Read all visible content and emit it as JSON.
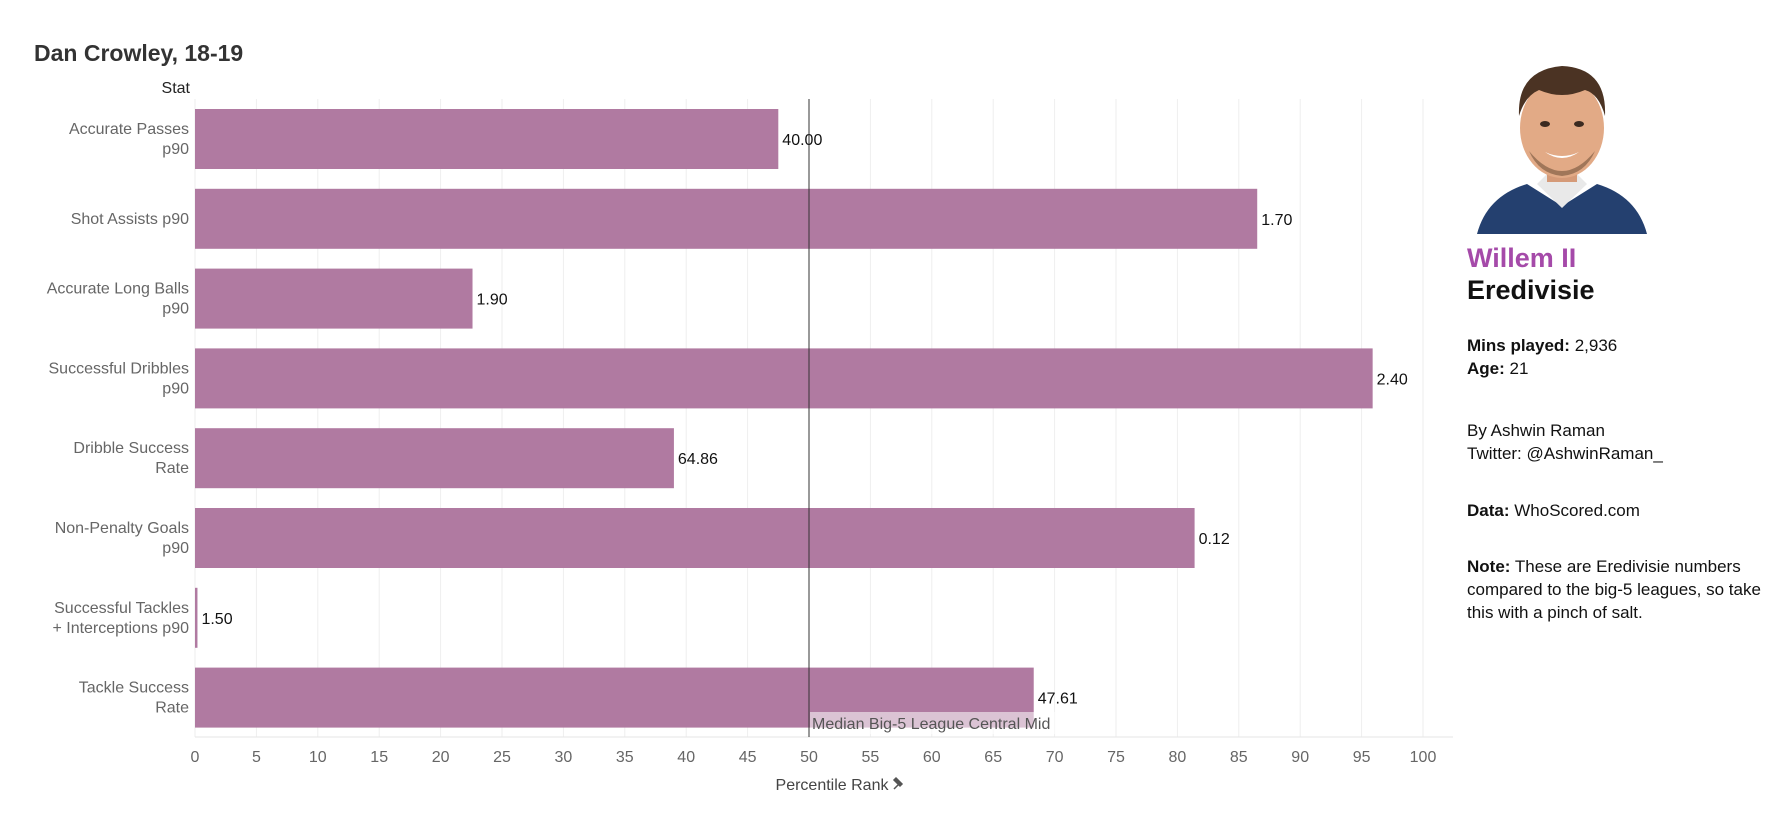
{
  "title": "Dan Crowley, 18-19",
  "chart_data": {
    "type": "bar",
    "orientation": "horizontal",
    "stat_header": "Stat",
    "categories": [
      [
        "Accurate Passes",
        "p90"
      ],
      [
        "Shot Assists p90"
      ],
      [
        "Accurate Long Balls",
        "p90"
      ],
      [
        "Successful Dribbles",
        "p90"
      ],
      [
        "Dribble Success",
        "Rate"
      ],
      [
        "Non-Penalty Goals",
        "p90"
      ],
      [
        "Successful Tackles",
        "+ Interceptions p90"
      ],
      [
        "Tackle Success",
        "Rate"
      ]
    ],
    "values": [
      47.5,
      86.5,
      22.6,
      95.9,
      39.0,
      81.4,
      0.2,
      68.3
    ],
    "value_labels": [
      "40.00",
      "1.70",
      "1.90",
      "2.40",
      "64.86",
      "0.12",
      "1.50",
      "47.61"
    ],
    "xlabel": "Percentile Rank",
    "xlim": [
      0,
      100
    ],
    "xticks": [
      0,
      5,
      10,
      15,
      20,
      25,
      30,
      35,
      40,
      45,
      50,
      55,
      60,
      65,
      70,
      75,
      80,
      85,
      90,
      95,
      100
    ],
    "reference_line": {
      "value": 50,
      "label": "Median Big-5 League Central Mid"
    },
    "bar_color": "#b07aa1",
    "grid": true
  },
  "sidebar": {
    "team": "Willem II",
    "league": "Eredivisie",
    "mins_label": "Mins played:",
    "mins_value": "2,936",
    "age_label": "Age:",
    "age_value": "21",
    "byline": "By Ashwin Raman",
    "twitter": "Twitter: @AshwinRaman_",
    "data_label": "Data:",
    "data_value": "WhoScored.com",
    "note_label": "Note:",
    "note_value": "These are Eredivisie numbers compared to the big-5 leagues, so take this with a pinch of salt."
  },
  "colors": {
    "team": "#a54aa9",
    "bar": "#b07aa1"
  }
}
